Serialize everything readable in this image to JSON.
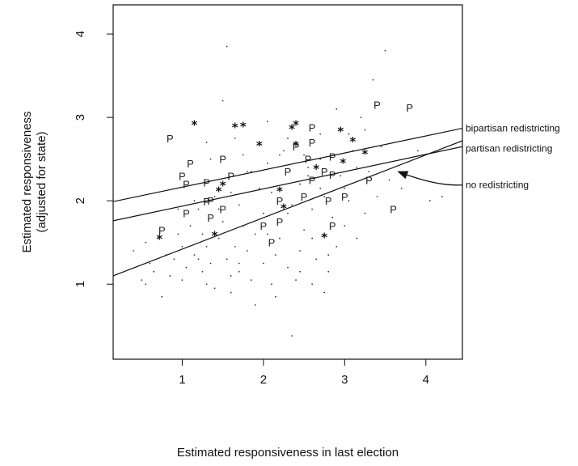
{
  "chart_data": {
    "type": "scatter",
    "title": "",
    "xlabel": "Estimated responsiveness in last election",
    "ylabel": [
      "Estimated responsiveness",
      "(adjusted for state)"
    ],
    "xlim": [
      0.15,
      4.45
    ],
    "ylim": [
      0.1,
      4.35
    ],
    "xticks": [
      "1",
      "2",
      "3",
      "4"
    ],
    "yticks": [
      "1",
      "2",
      "3",
      "4"
    ],
    "grid": false,
    "lines": [
      {
        "name": "bipartisan redistricting",
        "x": [
          0.15,
          4.45
        ],
        "y": [
          1.99,
          2.87
        ]
      },
      {
        "name": "partisan redistricting",
        "x": [
          0.15,
          4.45
        ],
        "y": [
          1.76,
          2.65
        ]
      },
      {
        "name": "no redistricting",
        "x": [
          0.15,
          4.45
        ],
        "y": [
          1.1,
          2.72
        ]
      }
    ],
    "annotation_arrow": {
      "label": "no redistricting",
      "from": [
        4.45,
        2.19
      ],
      "to": [
        3.6,
        2.37
      ]
    },
    "series": [
      {
        "name": "",
        "marker": "P",
        "points": [
          [
            0.75,
            1.65
          ],
          [
            0.85,
            2.75
          ],
          [
            1.0,
            2.3
          ],
          [
            1.05,
            2.2
          ],
          [
            1.1,
            2.45
          ],
          [
            1.05,
            1.85
          ],
          [
            1.3,
            1.99
          ],
          [
            1.35,
            2.0
          ],
          [
            1.35,
            1.8
          ],
          [
            1.3,
            2.22
          ],
          [
            1.5,
            2.5
          ],
          [
            1.5,
            1.9
          ],
          [
            1.6,
            2.3
          ],
          [
            2.0,
            1.7
          ],
          [
            2.1,
            1.5
          ],
          [
            2.2,
            1.75
          ],
          [
            2.2,
            2.0
          ],
          [
            2.3,
            2.35
          ],
          [
            2.4,
            2.65
          ],
          [
            2.5,
            2.05
          ],
          [
            2.55,
            2.5
          ],
          [
            2.6,
            2.25
          ],
          [
            2.6,
            2.7
          ],
          [
            2.6,
            2.88
          ],
          [
            2.75,
            2.35
          ],
          [
            2.85,
            1.7
          ],
          [
            2.8,
            2.0
          ],
          [
            2.85,
            2.53
          ],
          [
            2.85,
            2.31
          ],
          [
            3.0,
            2.05
          ],
          [
            3.3,
            2.25
          ],
          [
            3.4,
            3.15
          ],
          [
            3.6,
            1.9
          ],
          [
            3.8,
            3.12
          ]
        ]
      },
      {
        "name": "",
        "marker": "*",
        "points": [
          [
            0.72,
            1.58
          ],
          [
            1.15,
            2.95
          ],
          [
            1.4,
            1.62
          ],
          [
            1.45,
            2.15
          ],
          [
            1.5,
            2.22
          ],
          [
            1.65,
            2.92
          ],
          [
            1.75,
            2.93
          ],
          [
            1.95,
            2.7
          ],
          [
            2.2,
            2.15
          ],
          [
            2.25,
            1.95
          ],
          [
            2.35,
            2.9
          ],
          [
            2.4,
            2.95
          ],
          [
            2.4,
            2.7
          ],
          [
            2.65,
            2.42
          ],
          [
            2.75,
            1.6
          ],
          [
            2.95,
            2.87
          ],
          [
            2.98,
            2.49
          ],
          [
            3.1,
            2.75
          ],
          [
            3.25,
            2.6
          ]
        ]
      },
      {
        "name": "",
        "marker": "dot",
        "points": [
          [
            0.4,
            1.4
          ],
          [
            0.5,
            1.05
          ],
          [
            0.55,
            1.0
          ],
          [
            0.6,
            1.25
          ],
          [
            0.65,
            1.15
          ],
          [
            0.7,
            1.55
          ],
          [
            0.75,
            0.85
          ],
          [
            0.8,
            1.35
          ],
          [
            0.85,
            1.1
          ],
          [
            0.9,
            1.3
          ],
          [
            0.95,
            1.6
          ],
          [
            1.0,
            1.05
          ],
          [
            1.0,
            1.45
          ],
          [
            1.05,
            1.2
          ],
          [
            1.1,
            1.7
          ],
          [
            1.15,
            1.35
          ],
          [
            1.2,
            1.9
          ],
          [
            1.25,
            1.15
          ],
          [
            1.3,
            1.0
          ],
          [
            1.3,
            1.45
          ],
          [
            1.35,
            1.25
          ],
          [
            1.4,
            2.05
          ],
          [
            1.4,
            0.95
          ],
          [
            1.45,
            1.55
          ],
          [
            1.5,
            1.75
          ],
          [
            1.55,
            1.3
          ],
          [
            1.6,
            2.1
          ],
          [
            1.6,
            0.9
          ],
          [
            1.65,
            1.45
          ],
          [
            1.7,
            1.95
          ],
          [
            1.7,
            1.15
          ],
          [
            1.75,
            2.55
          ],
          [
            1.8,
            1.4
          ],
          [
            1.85,
            1.05
          ],
          [
            1.85,
            2.35
          ],
          [
            1.9,
            0.75
          ],
          [
            1.9,
            1.6
          ],
          [
            1.95,
            2.15
          ],
          [
            2.0,
            1.25
          ],
          [
            2.0,
            1.85
          ],
          [
            2.05,
            2.45
          ],
          [
            2.1,
            1.0
          ],
          [
            2.1,
            2.1
          ],
          [
            2.15,
            1.35
          ],
          [
            2.2,
            1.55
          ],
          [
            2.25,
            2.6
          ],
          [
            2.3,
            1.2
          ],
          [
            2.3,
            1.85
          ],
          [
            2.35,
            0.38
          ],
          [
            2.4,
            1.05
          ],
          [
            2.45,
            1.4
          ],
          [
            2.45,
            2.2
          ],
          [
            2.5,
            1.65
          ],
          [
            2.55,
            2.4
          ],
          [
            2.6,
            1.0
          ],
          [
            2.6,
            1.9
          ],
          [
            2.65,
            1.3
          ],
          [
            2.7,
            2.15
          ],
          [
            2.75,
            0.9
          ],
          [
            2.8,
            1.15
          ],
          [
            2.85,
            1.8
          ],
          [
            2.9,
            1.45
          ],
          [
            2.95,
            2.3
          ],
          [
            3.0,
            1.7
          ],
          [
            3.05,
            2.0
          ],
          [
            3.1,
            2.6
          ],
          [
            3.15,
            1.55
          ],
          [
            3.2,
            3.0
          ],
          [
            3.3,
            2.35
          ],
          [
            3.35,
            3.45
          ],
          [
            3.4,
            2.05
          ],
          [
            3.45,
            2.65
          ],
          [
            3.5,
            3.8
          ],
          [
            3.55,
            2.25
          ],
          [
            3.7,
            2.15
          ],
          [
            3.9,
            2.6
          ],
          [
            4.05,
            2.0
          ],
          [
            4.2,
            2.05
          ],
          [
            1.55,
            3.85
          ],
          [
            1.5,
            3.2
          ],
          [
            1.3,
            2.7
          ],
          [
            1.65,
            2.75
          ],
          [
            1.8,
            2.35
          ],
          [
            2.05,
            2.95
          ],
          [
            2.3,
            2.75
          ],
          [
            2.5,
            2.55
          ],
          [
            2.7,
            2.8
          ],
          [
            2.9,
            3.1
          ],
          [
            3.05,
            2.8
          ],
          [
            3.25,
            2.85
          ],
          [
            2.2,
            2.55
          ],
          [
            2.7,
            2.5
          ],
          [
            3.15,
            2.4
          ],
          [
            0.55,
            1.5
          ],
          [
            0.95,
            1.9
          ],
          [
            1.25,
            1.6
          ],
          [
            1.45,
            1.9
          ],
          [
            1.75,
            1.7
          ],
          [
            2.05,
            1.6
          ],
          [
            2.35,
            1.95
          ],
          [
            2.55,
            2.3
          ],
          [
            2.75,
            2.05
          ],
          [
            3.0,
            2.15
          ],
          [
            3.25,
            1.85
          ],
          [
            1.35,
            2.5
          ],
          [
            1.15,
            2.0
          ],
          [
            1.7,
            1.25
          ],
          [
            2.15,
            0.85
          ],
          [
            2.45,
            1.15
          ],
          [
            2.8,
            1.35
          ],
          [
            1.6,
            1.1
          ],
          [
            1.2,
            1.3
          ],
          [
            2.6,
            1.55
          ]
        ]
      }
    ]
  }
}
